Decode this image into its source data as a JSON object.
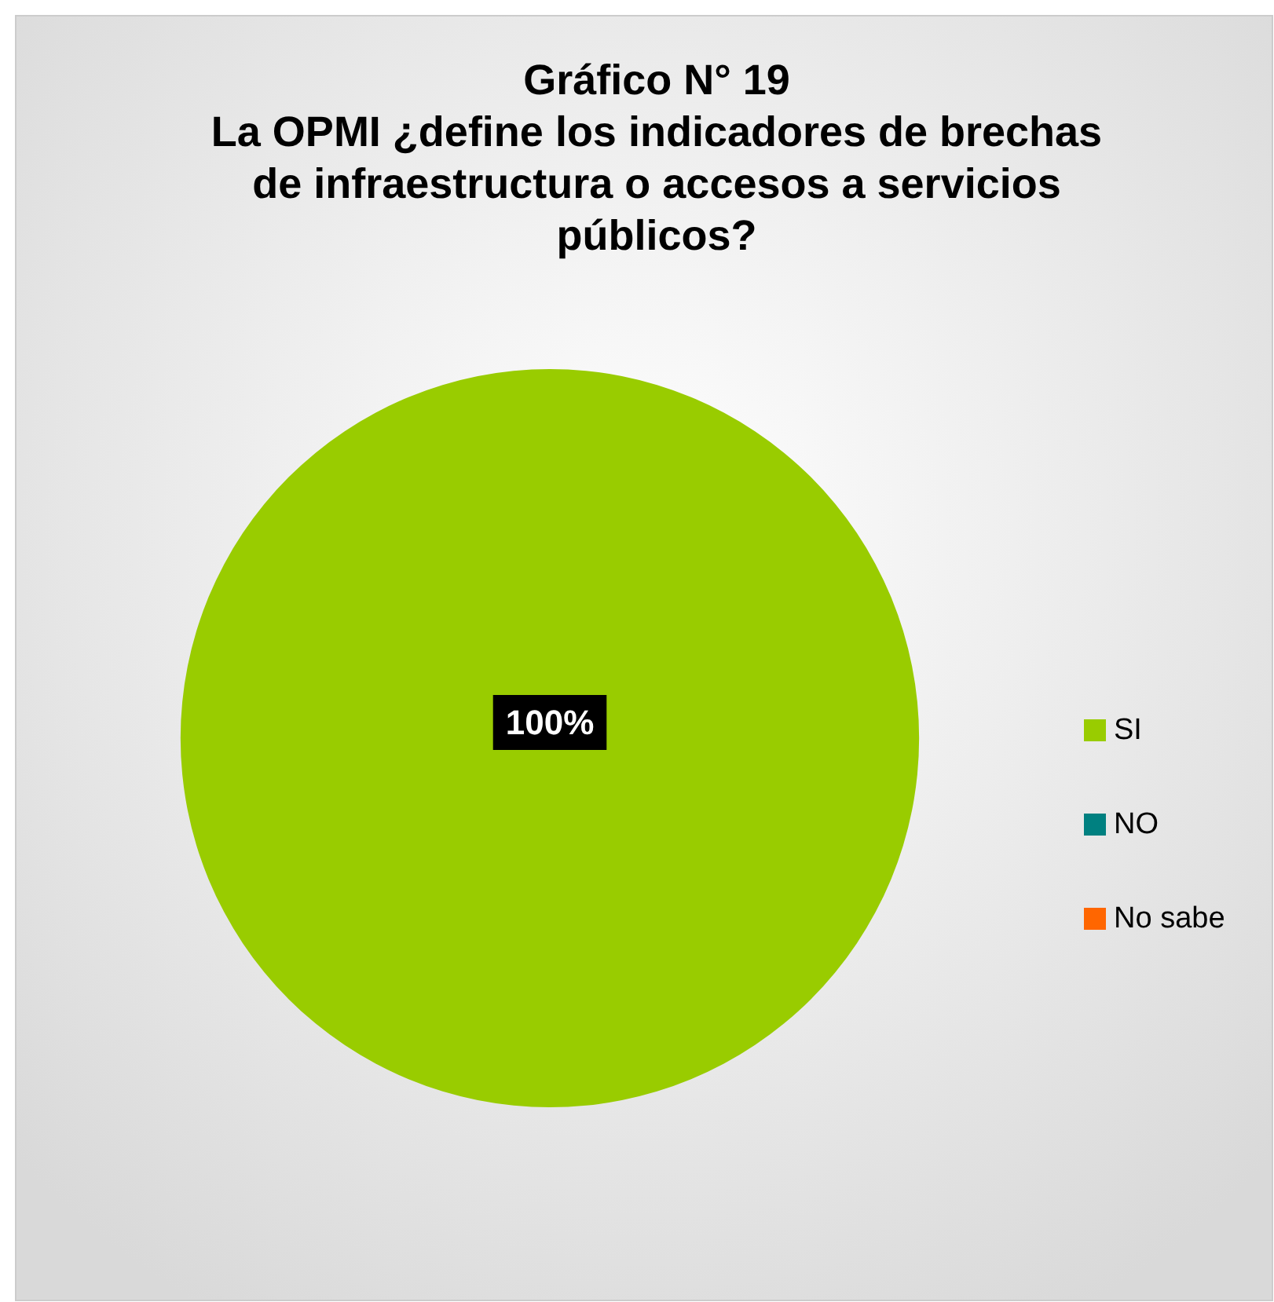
{
  "chart_data": {
    "type": "pie",
    "title": "Gráfico N° 19\nLa OPMI ¿define los indicadores de brechas\nde infraestructura o accesos a servicios\npúblicos?",
    "categories": [
      "SI",
      "NO",
      "No sabe"
    ],
    "values": [
      100,
      0,
      0
    ],
    "colors": [
      "#99cc00",
      "#008080",
      "#ff6600"
    ],
    "value_labels": [
      "100%",
      null,
      null
    ],
    "legend": "right"
  }
}
